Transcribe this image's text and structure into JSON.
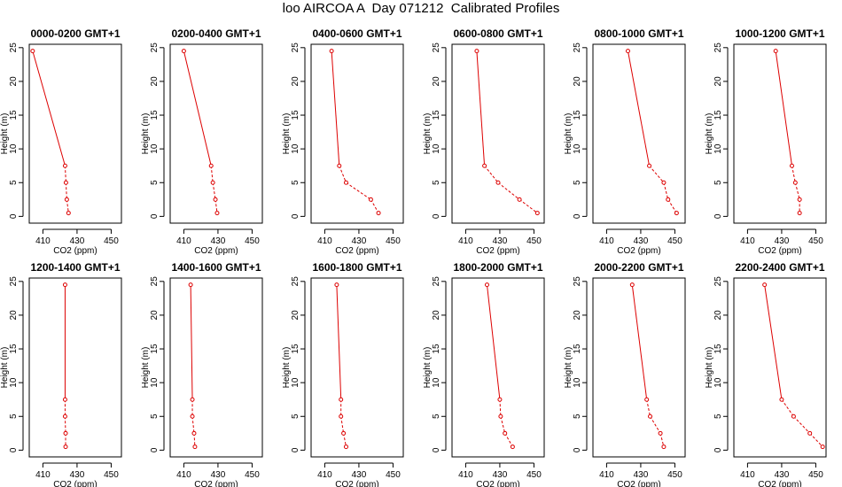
{
  "title": "loo AIRCOA A  Day 071212  Calibrated Profiles",
  "colors": {
    "line": "#dd0000",
    "axis": "#000000",
    "background": "#ffffff"
  },
  "chart_data": [
    {
      "type": "line",
      "title": "0000-0200 GMT+1",
      "xlabel": "CO2 (ppm)",
      "ylabel": "Height (m)",
      "xlim": [
        402,
        456
      ],
      "ylim": [
        -1,
        25.5
      ],
      "xticks": [
        410,
        430,
        450
      ],
      "yticks": [
        0,
        5,
        10,
        15,
        20,
        25
      ],
      "grid": false,
      "series": [
        {
          "x": [
            404,
            423,
            423.5,
            424,
            425
          ],
          "y": [
            24.5,
            7.5,
            5,
            2.5,
            0.5
          ]
        }
      ]
    },
    {
      "type": "line",
      "title": "0200-0400 GMT+1",
      "xlabel": "CO2 (ppm)",
      "ylabel": "Height (m)",
      "xlim": [
        402,
        456
      ],
      "ylim": [
        -1,
        25.5
      ],
      "xticks": [
        410,
        430,
        450
      ],
      "yticks": [
        0,
        5,
        10,
        15,
        20,
        25
      ],
      "grid": false,
      "series": [
        {
          "x": [
            410,
            426,
            427,
            428.5,
            429.5
          ],
          "y": [
            24.5,
            7.5,
            5,
            2.5,
            0.5
          ]
        }
      ]
    },
    {
      "type": "line",
      "title": "0400-0600 GMT+1",
      "xlabel": "CO2 (ppm)",
      "ylabel": "Height (m)",
      "xlim": [
        402,
        456
      ],
      "ylim": [
        -1,
        25.5
      ],
      "xticks": [
        410,
        430,
        450
      ],
      "yticks": [
        0,
        5,
        10,
        15,
        20,
        25
      ],
      "grid": false,
      "series": [
        {
          "x": [
            414,
            418.5,
            422.5,
            437,
            441.5
          ],
          "y": [
            24.5,
            7.5,
            5,
            2.5,
            0.5
          ]
        }
      ]
    },
    {
      "type": "line",
      "title": "0600-0800 GMT+1",
      "xlabel": "CO2 (ppm)",
      "ylabel": "Height (m)",
      "xlim": [
        402,
        456
      ],
      "ylim": [
        -1,
        25.5
      ],
      "xticks": [
        410,
        430,
        450
      ],
      "yticks": [
        0,
        5,
        10,
        15,
        20,
        25
      ],
      "grid": false,
      "series": [
        {
          "x": [
            416.5,
            421,
            429,
            441.5,
            452
          ],
          "y": [
            24.5,
            7.5,
            5,
            2.5,
            0.5
          ]
        }
      ]
    },
    {
      "type": "line",
      "title": "0800-1000 GMT+1",
      "xlabel": "CO2 (ppm)",
      "ylabel": "Height (m)",
      "xlim": [
        402,
        456
      ],
      "ylim": [
        -1,
        25.5
      ],
      "xticks": [
        410,
        430,
        450
      ],
      "yticks": [
        0,
        5,
        10,
        15,
        20,
        25
      ],
      "grid": false,
      "series": [
        {
          "x": [
            422.5,
            435,
            443.5,
            446,
            451
          ],
          "y": [
            24.5,
            7.5,
            5,
            2.5,
            0.5
          ]
        }
      ]
    },
    {
      "type": "line",
      "title": "1000-1200 GMT+1",
      "xlabel": "CO2 (ppm)",
      "ylabel": "Height (m)",
      "xlim": [
        402,
        456
      ],
      "ylim": [
        -1,
        25.5
      ],
      "xticks": [
        410,
        430,
        450
      ],
      "yticks": [
        0,
        5,
        10,
        15,
        20,
        25
      ],
      "grid": false,
      "series": [
        {
          "x": [
            426.5,
            436,
            438,
            440.5,
            440.5
          ],
          "y": [
            24.5,
            7.5,
            5,
            2.5,
            0.5
          ]
        }
      ]
    },
    {
      "type": "line",
      "title": "1200-1400 GMT+1",
      "xlabel": "CO2 (ppm)",
      "ylabel": "Height (m)",
      "xlim": [
        402,
        456
      ],
      "ylim": [
        -1,
        25.5
      ],
      "xticks": [
        410,
        430,
        450
      ],
      "yticks": [
        0,
        5,
        10,
        15,
        20,
        25
      ],
      "grid": false,
      "series": [
        {
          "x": [
            423,
            423,
            423,
            423.3,
            423.3
          ],
          "y": [
            24.5,
            7.5,
            5,
            2.5,
            0.5
          ]
        }
      ]
    },
    {
      "type": "line",
      "title": "1400-1600 GMT+1",
      "xlabel": "CO2 (ppm)",
      "ylabel": "Height (m)",
      "xlim": [
        402,
        456
      ],
      "ylim": [
        -1,
        25.5
      ],
      "xticks": [
        410,
        430,
        450
      ],
      "yticks": [
        0,
        5,
        10,
        15,
        20,
        25
      ],
      "grid": false,
      "series": [
        {
          "x": [
            414,
            415,
            415,
            416,
            416.5
          ],
          "y": [
            24.5,
            7.5,
            5,
            2.5,
            0.5
          ]
        }
      ]
    },
    {
      "type": "line",
      "title": "1600-1800 GMT+1",
      "xlabel": "CO2 (ppm)",
      "ylabel": "Height (m)",
      "xlim": [
        402,
        456
      ],
      "ylim": [
        -1,
        25.5
      ],
      "xticks": [
        410,
        430,
        450
      ],
      "yticks": [
        0,
        5,
        10,
        15,
        20,
        25
      ],
      "grid": false,
      "series": [
        {
          "x": [
            417,
            419.5,
            419.5,
            421,
            422.5
          ],
          "y": [
            24.5,
            7.5,
            5,
            2.5,
            0.5
          ]
        }
      ]
    },
    {
      "type": "line",
      "title": "1800-2000 GMT+1",
      "xlabel": "CO2 (ppm)",
      "ylabel": "Height (m)",
      "xlim": [
        402,
        456
      ],
      "ylim": [
        -1,
        25.5
      ],
      "xticks": [
        410,
        430,
        450
      ],
      "yticks": [
        0,
        5,
        10,
        15,
        20,
        25
      ],
      "grid": false,
      "series": [
        {
          "x": [
            422.5,
            430,
            430.5,
            433,
            437.5
          ],
          "y": [
            24.5,
            7.5,
            5,
            2.5,
            0.5
          ]
        }
      ]
    },
    {
      "type": "line",
      "title": "2000-2200 GMT+1",
      "xlabel": "CO2 (ppm)",
      "ylabel": "Height (m)",
      "xlim": [
        402,
        456
      ],
      "ylim": [
        -1,
        25.5
      ],
      "xticks": [
        410,
        430,
        450
      ],
      "yticks": [
        0,
        5,
        10,
        15,
        20,
        25
      ],
      "grid": false,
      "series": [
        {
          "x": [
            425,
            433.5,
            435.5,
            441.5,
            443.5
          ],
          "y": [
            24.5,
            7.5,
            5,
            2.5,
            0.5
          ]
        }
      ]
    },
    {
      "type": "line",
      "title": "2200-2400 GMT+1",
      "xlabel": "CO2 (ppm)",
      "ylabel": "Height (m)",
      "xlim": [
        402,
        456
      ],
      "ylim": [
        -1,
        25.5
      ],
      "xticks": [
        410,
        430,
        450
      ],
      "yticks": [
        0,
        5,
        10,
        15,
        20,
        25
      ],
      "grid": false,
      "series": [
        {
          "x": [
            420,
            430,
            437,
            446.5,
            454
          ],
          "y": [
            24.5,
            7.5,
            5,
            2.5,
            0.5
          ]
        }
      ]
    }
  ]
}
